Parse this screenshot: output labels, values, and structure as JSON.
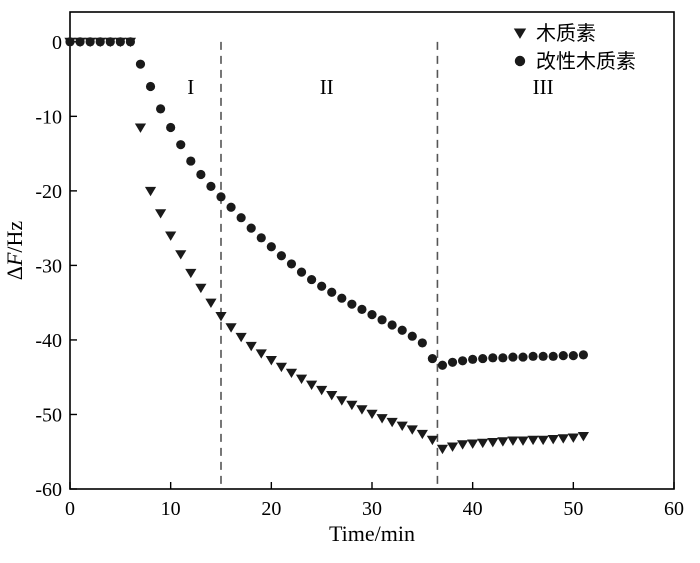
{
  "figure": {
    "background": "#ffffff",
    "axis_color": "#000000",
    "marker_color": "#1a1a1a",
    "divider_color": "#555555"
  },
  "chart_data": {
    "type": "scatter",
    "title": "",
    "xlabel": "Time/min",
    "ylabel": "ΔF/Hz",
    "ylabel_parts": {
      "prefix": "Δ",
      "italic": "F",
      "suffix": "/Hz"
    },
    "xlim": [
      0,
      60
    ],
    "ylim": [
      -60,
      4
    ],
    "xticks": [
      0,
      10,
      20,
      30,
      40,
      50,
      60
    ],
    "yticks": [
      0,
      -10,
      -20,
      -30,
      -40,
      -50,
      -60
    ],
    "grid": false,
    "legend_position": "top-right-inside",
    "legend": [
      {
        "label": "木质素",
        "marker": "triangle-down"
      },
      {
        "label": "改性木质素",
        "marker": "circle"
      }
    ],
    "series": [
      {
        "name": "木质素",
        "marker": "triangle-down",
        "x": [
          0,
          1,
          2,
          3,
          4,
          5,
          6,
          7,
          8,
          9,
          10,
          11,
          12,
          13,
          14,
          15,
          16,
          17,
          18,
          19,
          20,
          21,
          22,
          23,
          24,
          25,
          26,
          27,
          28,
          29,
          30,
          31,
          32,
          33,
          34,
          35,
          36,
          37,
          38,
          39,
          40,
          41,
          42,
          43,
          44,
          45,
          46,
          47,
          48,
          49,
          50,
          51
        ],
        "y": [
          0,
          0,
          0,
          0,
          0,
          0,
          0,
          -11.5,
          -20,
          -23,
          -26,
          -28.5,
          -31,
          -33,
          -35,
          -36.8,
          -38.3,
          -39.6,
          -40.8,
          -41.8,
          -42.7,
          -43.6,
          -44.4,
          -45.2,
          -46,
          -46.7,
          -47.4,
          -48.1,
          -48.7,
          -49.3,
          -49.9,
          -50.5,
          -51,
          -51.5,
          -52,
          -52.6,
          -53.4,
          -54.6,
          -54.3,
          -54,
          -53.9,
          -53.8,
          -53.7,
          -53.6,
          -53.5,
          -53.5,
          -53.4,
          -53.4,
          -53.3,
          -53.2,
          -53.1,
          -52.9
        ]
      },
      {
        "name": "改性木质素",
        "marker": "circle",
        "x": [
          0,
          1,
          2,
          3,
          4,
          5,
          6,
          7,
          8,
          9,
          10,
          11,
          12,
          13,
          14,
          15,
          16,
          17,
          18,
          19,
          20,
          21,
          22,
          23,
          24,
          25,
          26,
          27,
          28,
          29,
          30,
          31,
          32,
          33,
          34,
          35,
          36,
          37,
          38,
          39,
          40,
          41,
          42,
          43,
          44,
          45,
          46,
          47,
          48,
          49,
          50,
          51
        ],
        "y": [
          0,
          0,
          0,
          0,
          0,
          0,
          0,
          -3,
          -6,
          -9,
          -11.5,
          -13.8,
          -16,
          -17.8,
          -19.4,
          -20.8,
          -22.2,
          -23.6,
          -25,
          -26.3,
          -27.5,
          -28.7,
          -29.8,
          -30.9,
          -31.9,
          -32.8,
          -33.6,
          -34.4,
          -35.2,
          -35.9,
          -36.6,
          -37.3,
          -38,
          -38.7,
          -39.5,
          -40.4,
          -42.5,
          -43.4,
          -43,
          -42.8,
          -42.6,
          -42.5,
          -42.4,
          -42.4,
          -42.3,
          -42.3,
          -42.2,
          -42.2,
          -42.2,
          -42.1,
          -42.1,
          -42
        ]
      }
    ],
    "dividers": [
      {
        "x": 15,
        "from": 0,
        "to": -60
      },
      {
        "x": 36.5,
        "from": 0,
        "to": -60
      }
    ],
    "region_labels": [
      {
        "text": "I",
        "x": 12,
        "y": -7
      },
      {
        "text": "II",
        "x": 25.5,
        "y": -7
      },
      {
        "text": "III",
        "x": 47,
        "y": -7
      }
    ]
  }
}
